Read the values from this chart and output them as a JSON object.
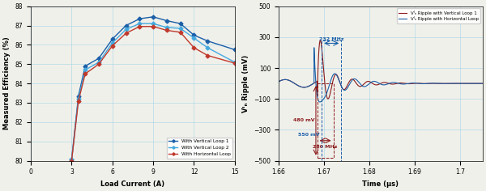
{
  "left": {
    "xlabel": "Load Current (A)",
    "ylabel": "Measured Efficiency (%)",
    "xlim": [
      0,
      15
    ],
    "ylim": [
      80,
      88
    ],
    "yticks": [
      80,
      81,
      82,
      83,
      84,
      85,
      86,
      87,
      88
    ],
    "xticks": [
      0,
      3,
      6,
      9,
      12,
      15
    ],
    "vloop1": {
      "x": [
        3,
        3.5,
        4,
        5,
        6,
        7,
        8,
        9,
        10,
        11,
        12,
        13,
        15
      ],
      "y": [
        80.05,
        83.35,
        84.9,
        85.3,
        86.3,
        87.0,
        87.35,
        87.45,
        87.25,
        87.1,
        86.5,
        86.2,
        85.75
      ],
      "color": "#1a5fa8",
      "marker": "D",
      "label": "With Vertical Loop 1"
    },
    "vloop2": {
      "x": [
        3,
        3.5,
        4,
        5,
        6,
        7,
        8,
        9,
        10,
        11,
        12,
        13,
        15
      ],
      "y": [
        80.05,
        83.2,
        84.7,
        85.1,
        86.1,
        86.8,
        87.1,
        87.1,
        86.9,
        86.85,
        86.35,
        85.85,
        85.1
      ],
      "color": "#45a9df",
      "marker": "D",
      "label": "With Vertical Loop 2"
    },
    "hloop": {
      "x": [
        3,
        3.5,
        4,
        5,
        6,
        7,
        8,
        9,
        10,
        11,
        12,
        13,
        15
      ],
      "y": [
        80.0,
        83.1,
        84.5,
        85.0,
        85.95,
        86.6,
        86.95,
        86.95,
        86.75,
        86.65,
        85.85,
        85.45,
        85.05
      ],
      "color": "#c0392b",
      "marker": "D",
      "label": "With Horizontal Loop"
    }
  },
  "right": {
    "xlabel": "Time (μs)",
    "ylabel": "Vᴵₙ Ripple (mV)",
    "xlim": [
      1.66,
      1.705
    ],
    "ylim": [
      -500,
      500
    ],
    "yticks": [
      -500,
      -300,
      -100,
      100,
      300,
      500
    ],
    "xticks": [
      1.66,
      1.67,
      1.68,
      1.69,
      1.7
    ],
    "xticklabels": [
      "1.66",
      "1.67",
      "1.68",
      "1.69",
      "1.7"
    ],
    "legend1": "Vᴵₙ Ripple with Vertical Loop 1",
    "legend2": "Vᴵₙ Ripple with Horizontal Loop",
    "color_red": "#8b1a1a",
    "color_blue": "#1a5fa8",
    "annot_232": "232 MHz",
    "annot_280": "280 MHz",
    "annot_480": "480 mV",
    "annot_550": "550 mV"
  },
  "background_color": "#f0f0eb"
}
